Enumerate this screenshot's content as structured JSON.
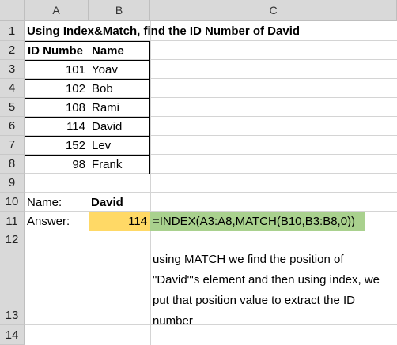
{
  "columns": [
    "A",
    "B",
    "C"
  ],
  "rows": [
    "1",
    "2",
    "3",
    "4",
    "5",
    "6",
    "7",
    "8",
    "9",
    "10",
    "11",
    "12",
    "13",
    "14"
  ],
  "title": "Using Index&Match, find the ID Number of David",
  "table": {
    "headers": {
      "id": "ID Numbe",
      "name": "Name"
    },
    "rows": [
      {
        "id": "101",
        "name": "Yoav"
      },
      {
        "id": "102",
        "name": "Bob"
      },
      {
        "id": "108",
        "name": "Rami"
      },
      {
        "id": "114",
        "name": "David"
      },
      {
        "id": "152",
        "name": "Lev"
      },
      {
        "id": "98",
        "name": "Frank"
      }
    ]
  },
  "lookup": {
    "name_label": "Name:",
    "name_value": "David"
  },
  "answer": {
    "label": "Answer:",
    "value": "114",
    "formula": "=INDEX(A3:A8,MATCH(B10,B3:B8,0))"
  },
  "note": "using MATCH we find the position of \"David\"'s element and then using index, we put that position value to extract the ID number",
  "colors": {
    "answer_fill": "#ffd966",
    "formula_fill": "#a9d18e",
    "header_fill": "#d9d9d9"
  }
}
